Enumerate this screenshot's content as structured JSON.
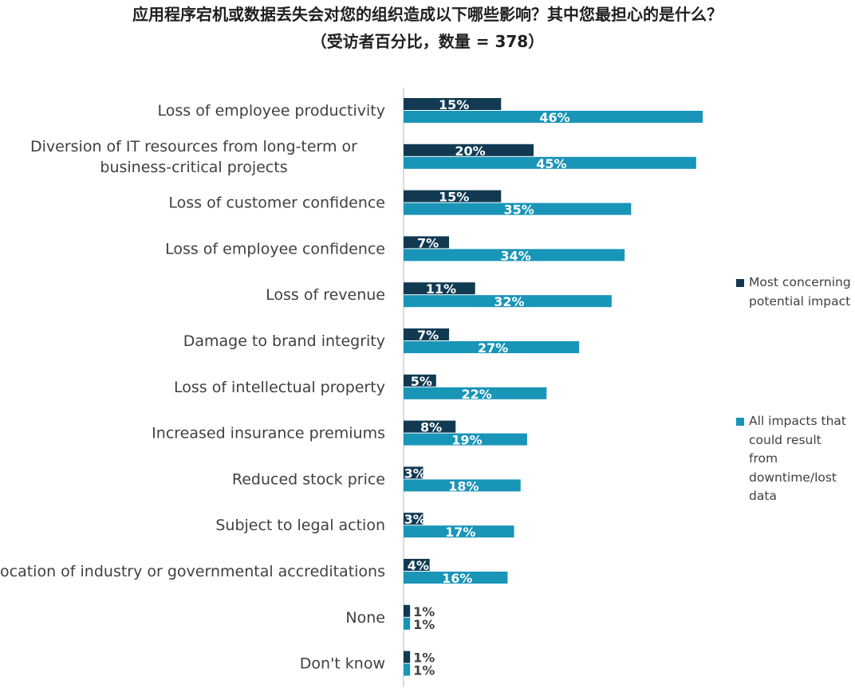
{
  "chart_data": {
    "type": "bar",
    "orientation": "horizontal",
    "title": "应用程序宕机或数据丢失会对您的组织造成以下哪些影响？其中您最担心的是什么？",
    "subtitle": "（受访者百分比，数量 = 378）",
    "categories": [
      "Loss of employee productivity",
      "Diversion of IT resources from long-term or business-critical projects",
      "Loss of customer confidence",
      "Loss of employee confidence",
      "Loss of revenue",
      "Damage to brand integrity",
      "Loss of intellectual property",
      "Increased insurance premiums",
      "Reduced stock price",
      "Subject to legal action",
      "Revocation of industry or governmental accreditations",
      "None",
      "Don't know"
    ],
    "series": [
      {
        "name": "Most concerning potential impact",
        "color": "#113a52",
        "values": [
          15,
          20,
          15,
          7,
          11,
          7,
          5,
          8,
          3,
          3,
          4,
          1,
          1
        ],
        "labels": [
          "15%",
          "20%",
          "15%",
          "7%",
          "11%",
          "7%",
          "5%",
          "8%",
          "3%",
          "3%",
          "4%",
          "1%",
          "1%"
        ]
      },
      {
        "name": "All impacts that could result from downtime/lost data",
        "color": "#1995b8",
        "values": [
          46,
          45,
          35,
          34,
          32,
          27,
          22,
          19,
          18,
          17,
          16,
          1,
          1
        ],
        "labels": [
          "46%",
          "45%",
          "35%",
          "34%",
          "32%",
          "27%",
          "22%",
          "19%",
          "18%",
          "17%",
          "16%",
          "1%",
          "1%"
        ]
      }
    ],
    "xlim": [
      0,
      50
    ],
    "legend_position": "right",
    "grid": false
  }
}
